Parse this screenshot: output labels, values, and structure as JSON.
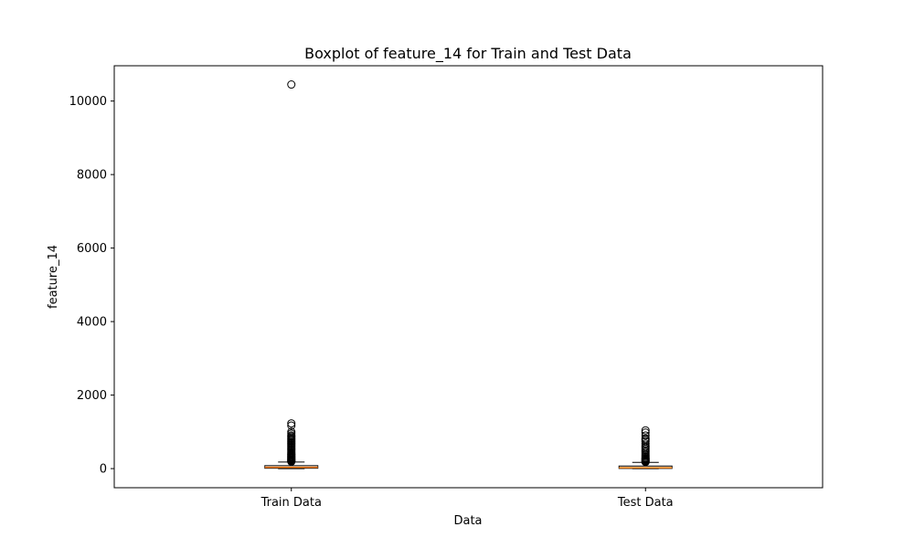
{
  "chart_data": {
    "type": "boxplot",
    "title": "Boxplot of feature_14 for Train and Test Data",
    "xlabel": "Data",
    "ylabel": "feature_14",
    "categories": [
      "Train Data",
      "Test Data"
    ],
    "ylim": [
      -520,
      10960
    ],
    "yticks": [
      0,
      2000,
      4000,
      6000,
      8000,
      10000
    ],
    "ytick_labels": [
      "0",
      "2000",
      "4000",
      "6000",
      "8000",
      "10000"
    ],
    "grid": false,
    "colors": {
      "median": "#ff7f0e",
      "box": "#000000",
      "flier": "#000000"
    },
    "boxes": [
      {
        "name": "Train Data",
        "whisker_low": 0,
        "q1": 10,
        "median": 35,
        "q3": 80,
        "whisker_high": 180,
        "fliers": [
          190,
          200,
          215,
          230,
          245,
          260,
          280,
          300,
          320,
          340,
          360,
          380,
          400,
          420,
          450,
          480,
          510,
          540,
          570,
          600,
          630,
          660,
          690,
          720,
          750,
          780,
          810,
          840,
          870,
          900,
          950,
          1000,
          1170,
          1230,
          10450
        ]
      },
      {
        "name": "Test Data",
        "whisker_low": 0,
        "q1": 5,
        "median": 25,
        "q3": 70,
        "whisker_high": 170,
        "fliers": [
          180,
          195,
          210,
          230,
          250,
          270,
          290,
          320,
          350,
          380,
          420,
          460,
          500,
          540,
          580,
          620,
          680,
          740,
          780,
          820,
          900,
          980,
          1040
        ]
      }
    ]
  }
}
